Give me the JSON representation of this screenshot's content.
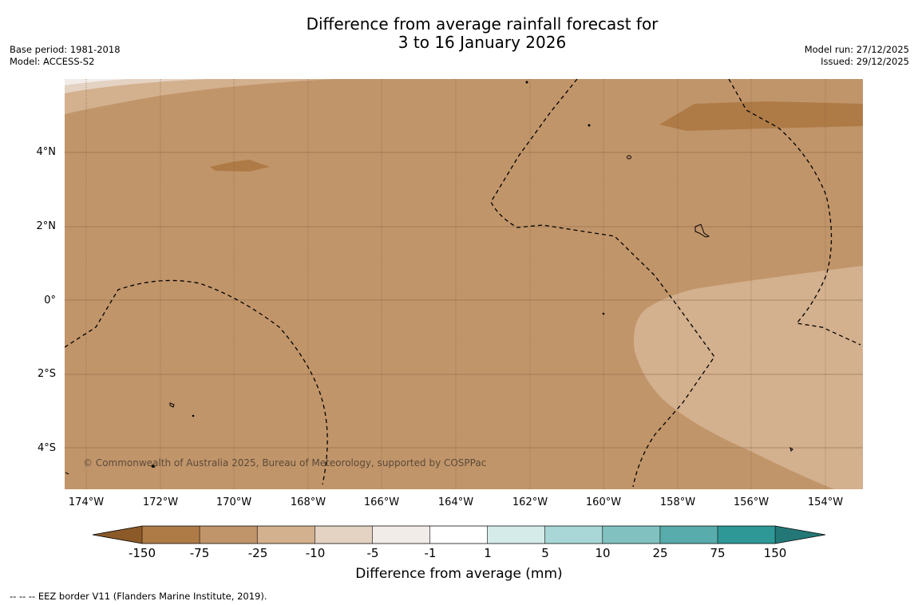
{
  "title": {
    "line1": "Difference from average rainfall forecast for",
    "line2": "3 to 16 January 2026"
  },
  "meta_left": {
    "base_period": "Base period: 1981-2018",
    "model": "Model: ACCESS-S2"
  },
  "meta_right": {
    "model_run": "Model run: 27/12/2025",
    "issued": "Issued: 29/12/2025"
  },
  "map": {
    "lat_labels": [
      "4°N",
      "2°N",
      "0°",
      "2°S",
      "4°S"
    ],
    "lon_labels": [
      "174°W",
      "172°W",
      "170°W",
      "168°W",
      "166°W",
      "164°W",
      "162°W",
      "160°W",
      "158°W",
      "156°W",
      "154°W"
    ],
    "copyright": "© Commonwealth of Australia 2025, Bureau of Meteorology, supported by COSPPac",
    "colors": {
      "base": "#c1956a",
      "dark": "#ae7b47",
      "light": "#d3b08e",
      "lighter": "#e4d2c2",
      "palest": "#f2ece8"
    }
  },
  "colorbar": {
    "labels": [
      "-150",
      "-75",
      "-25",
      "-10",
      "-5",
      "-1",
      "1",
      "5",
      "10",
      "25",
      "75",
      "150"
    ],
    "colors": [
      "#8c5a28",
      "#ae7b47",
      "#c1956a",
      "#d3b08e",
      "#e4d2c2",
      "#f2ece8",
      "#ffffff",
      "#d5ebea",
      "#a9d6d6",
      "#81c2c1",
      "#58acab",
      "#2e9896",
      "#237877"
    ],
    "title": "Difference from average (mm)"
  },
  "footnote": "--  --  -- EEZ border V11 (Flanders Marine Institute, 2019)."
}
